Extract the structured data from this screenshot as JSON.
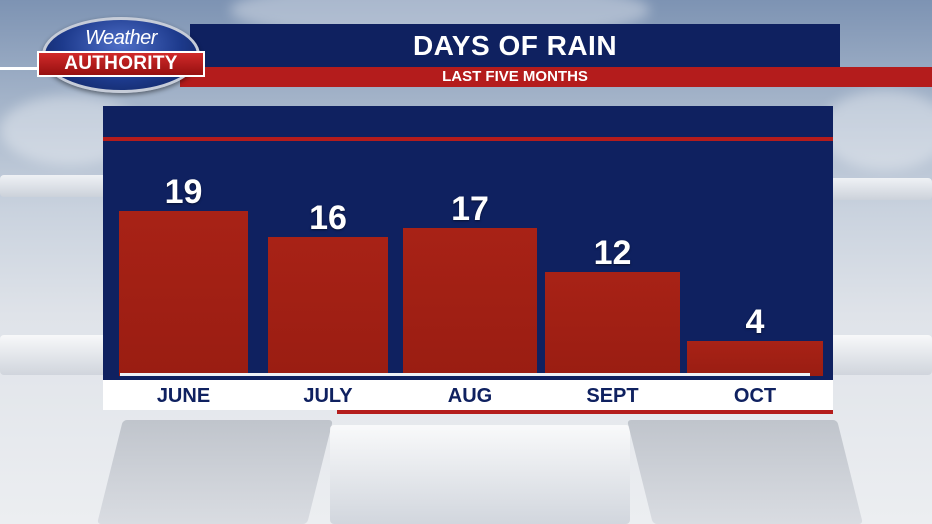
{
  "brand": {
    "logo_line1": "Weather",
    "logo_line2": "AUTHORITY"
  },
  "colors": {
    "navy": "#0f2160",
    "red": "#b41c1c",
    "bar": "#a82216"
  },
  "chart_data": {
    "type": "bar",
    "title": "DAYS OF RAIN",
    "subtitle": "LAST FIVE MONTHS",
    "categories": [
      "JUNE",
      "JULY",
      "AUG",
      "SEPT",
      "OCT"
    ],
    "values": [
      19,
      16,
      17,
      12,
      4
    ],
    "value_labels": [
      "19",
      "16",
      "17",
      "12",
      "4"
    ],
    "xlabel": "",
    "ylabel": "",
    "ylim": [
      0,
      19
    ],
    "grid": false,
    "legend": "none"
  }
}
